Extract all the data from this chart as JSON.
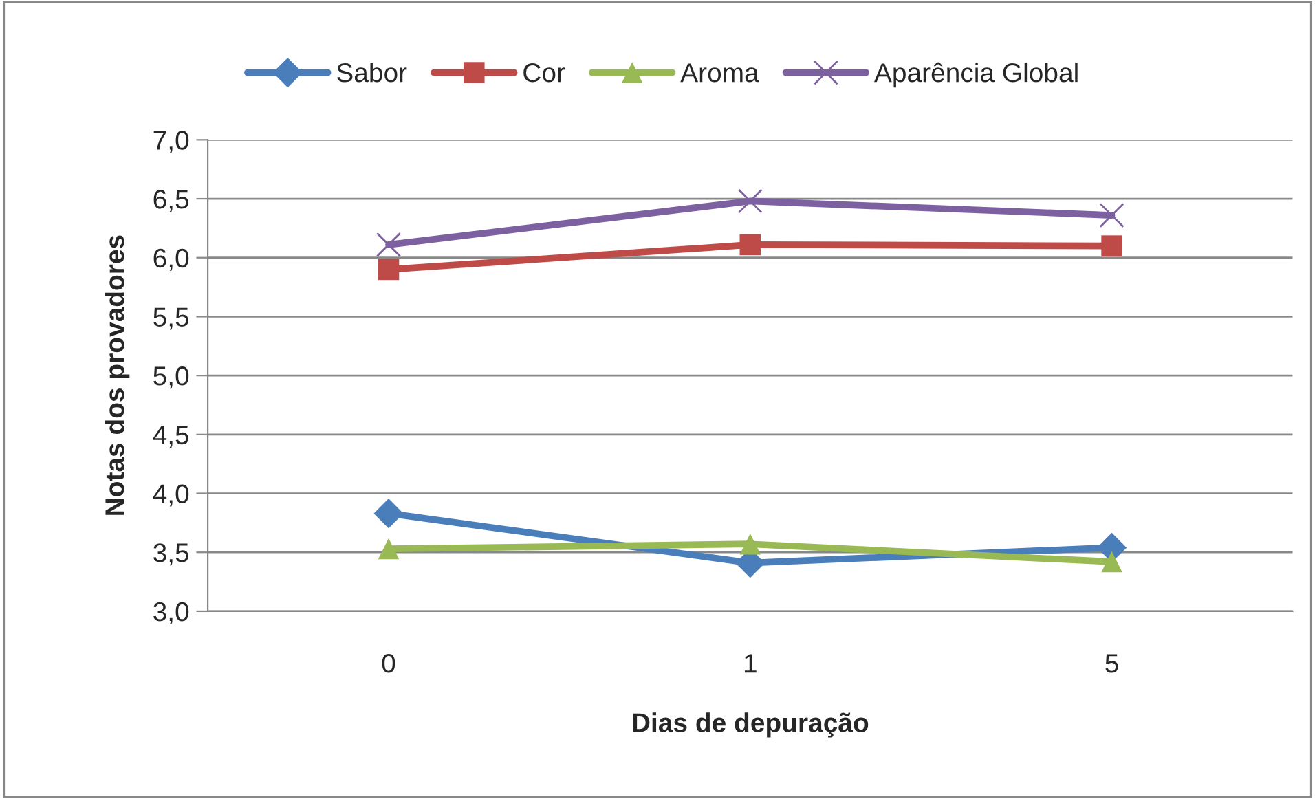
{
  "chart_data": {
    "type": "line",
    "xlabel": "Dias de depuração",
    "ylabel": "Notas dos provadores",
    "categories": [
      "0",
      "1",
      "5"
    ],
    "series": [
      {
        "name": "Sabor",
        "color": "#4a7ebb",
        "marker": "diamond",
        "values": [
          3.83,
          3.41,
          3.54
        ]
      },
      {
        "name": "Cor",
        "color": "#be4b48",
        "marker": "square",
        "values": [
          5.9,
          6.11,
          6.1
        ]
      },
      {
        "name": "Aroma",
        "color": "#98b954",
        "marker": "triangle",
        "values": [
          3.53,
          3.57,
          3.42
        ]
      },
      {
        "name": "Aparência Global",
        "color": "#7d60a0",
        "marker": "cross",
        "values": [
          6.11,
          6.48,
          6.36
        ]
      }
    ],
    "ylim": [
      3.0,
      7.0
    ],
    "yticks": [
      {
        "value": 3.0,
        "label": "3,0"
      },
      {
        "value": 3.5,
        "label": "3,5"
      },
      {
        "value": 4.0,
        "label": "4,0"
      },
      {
        "value": 4.5,
        "label": "4,5"
      },
      {
        "value": 5.0,
        "label": "5,0"
      },
      {
        "value": 5.5,
        "label": "5,5"
      },
      {
        "value": 6.0,
        "label": "6,0"
      },
      {
        "value": 6.5,
        "label": "6,5"
      },
      {
        "value": 7.0,
        "label": "7,0"
      }
    ],
    "grid": "y",
    "legend": "top",
    "line_style": "solid"
  }
}
